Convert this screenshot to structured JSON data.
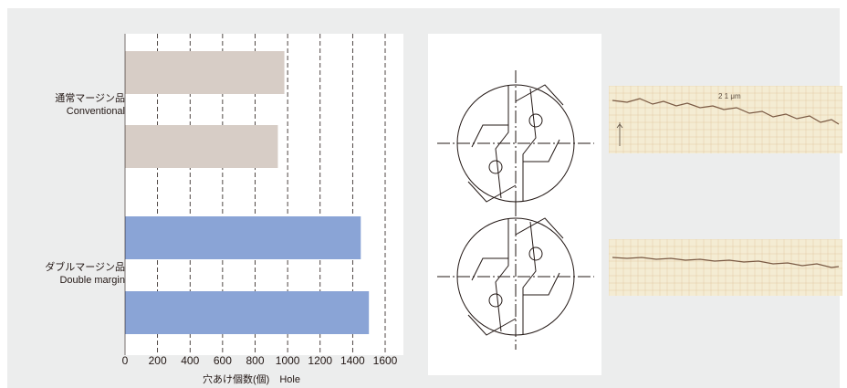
{
  "chart_data": {
    "type": "bar",
    "orientation": "horizontal",
    "categories": [
      "通常マージン品 Conventional",
      "ダブルマージン品 Double margin"
    ],
    "groups": [
      {
        "label_ja": "通常マージン品",
        "label_en": "Conventional",
        "values": [
          980,
          940
        ],
        "color": "#d7cdc6"
      },
      {
        "label_ja": "ダブルマージン品",
        "label_en": "Double margin",
        "values": [
          1450,
          1500
        ],
        "color": "#8aa4d6"
      }
    ],
    "xlim": [
      0,
      1600
    ],
    "xticks": [
      "0",
      "200",
      "400",
      "600",
      "800",
      "1000",
      "1200",
      "1400",
      "1600"
    ],
    "xlabel": "穴あけ個数(個)　Hole",
    "grid": "vertical dashed"
  },
  "colors": {
    "panel_bg": "#eceded",
    "plot_bg": "#ffffff",
    "conventional_bar": "#d7cdc6",
    "double_bar": "#8aa4d6",
    "grid": "#231815",
    "trace_paper": "#f4ecd3"
  },
  "figures": {
    "trace_label": "2 1 μm"
  }
}
